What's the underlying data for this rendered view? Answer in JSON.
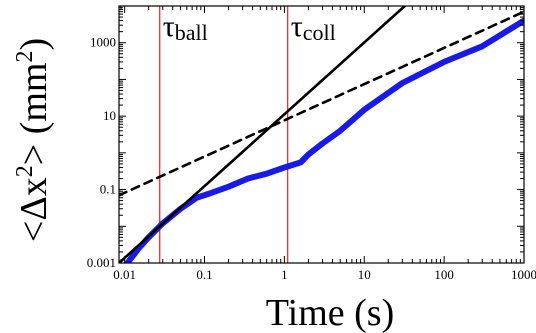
{
  "chart_data": {
    "type": "line",
    "xlabel": "Time (s)",
    "ylabel_parts": {
      "left": "<Δx",
      "sup1": "2",
      "mid": "> (mm",
      "sup2": "2",
      "right": ")"
    },
    "x_scale": "log",
    "y_scale": "log",
    "xlim": [
      0.0085,
      1000
    ],
    "ylim": [
      0.001,
      10000
    ],
    "xticks": [
      0.01,
      0.1,
      1,
      10,
      100,
      1000
    ],
    "xtick_labels": [
      "0.01",
      "0.1",
      "1",
      "10",
      "100",
      "1000"
    ],
    "yticks": [
      0.001,
      0.1,
      10,
      1000
    ],
    "ytick_labels": [
      "0.001",
      "0.1",
      "10",
      "1000"
    ],
    "grid": false,
    "series": [
      {
        "style": "solid-thick",
        "color": "#1a1ae6",
        "x": [
          0.01,
          0.015,
          0.02,
          0.03,
          0.05,
          0.08,
          0.12,
          0.2,
          0.35,
          0.6,
          1.0,
          1.6,
          2.0,
          3.0,
          5.0,
          10,
          30,
          100,
          300,
          1000
        ],
        "y": [
          0.0008,
          0.0025,
          0.005,
          0.012,
          0.03,
          0.06,
          0.08,
          0.12,
          0.2,
          0.27,
          0.4,
          0.55,
          0.9,
          1.8,
          4,
          15,
          80,
          300,
          800,
          4000
        ]
      },
      {
        "style": "solid",
        "color": "#000000",
        "x": [
          0.0085,
          32.2
        ],
        "y": [
          0.001,
          10000
        ]
      },
      {
        "style": "dashed",
        "color": "#000000",
        "x": [
          0.0085,
          1000
        ],
        "y": [
          0.07,
          7000
        ]
      }
    ],
    "vlines": [
      {
        "x": 0.0275,
        "label_base": "τ",
        "label_sub": "ball",
        "color": "#e62020"
      },
      {
        "x": 1.1,
        "label_base": "τ",
        "label_sub": "coll",
        "color": "#e62020"
      }
    ]
  }
}
